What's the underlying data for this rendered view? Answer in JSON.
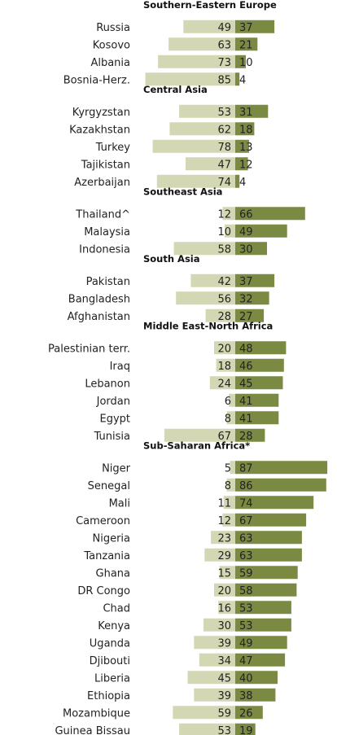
{
  "colors": {
    "left_bar": "#d4d7b4",
    "right_bar": "#7a8a43",
    "text": "#222222"
  },
  "chart_data": {
    "type": "bar",
    "orientation": "diverging-horizontal",
    "title": "",
    "xlabel": "",
    "ylabel": "",
    "legend": "none",
    "grid": false,
    "groups": [
      {
        "region": "Southern-Eastern Europe",
        "countries": [
          {
            "name": "Russia",
            "left": 49,
            "right": 37
          },
          {
            "name": "Kosovo",
            "left": 63,
            "right": 21
          },
          {
            "name": "Albania",
            "left": 73,
            "right": 10
          },
          {
            "name": "Bosnia-Herz.",
            "left": 85,
            "right": 4
          }
        ]
      },
      {
        "region": "Central Asia",
        "countries": [
          {
            "name": "Kyrgyzstan",
            "left": 53,
            "right": 31
          },
          {
            "name": "Kazakhstan",
            "left": 62,
            "right": 18
          },
          {
            "name": "Turkey",
            "left": 78,
            "right": 13
          },
          {
            "name": "Tajikistan",
            "left": 47,
            "right": 12
          },
          {
            "name": "Azerbaijan",
            "left": 74,
            "right": 4
          }
        ]
      },
      {
        "region": "Southeast Asia",
        "countries": [
          {
            "name": "Thailand^",
            "left": 12,
            "right": 66
          },
          {
            "name": "Malaysia",
            "left": 10,
            "right": 49
          },
          {
            "name": "Indonesia",
            "left": 58,
            "right": 30
          }
        ]
      },
      {
        "region": "South Asia",
        "countries": [
          {
            "name": "Pakistan",
            "left": 42,
            "right": 37
          },
          {
            "name": "Bangladesh",
            "left": 56,
            "right": 32
          },
          {
            "name": "Afghanistan",
            "left": 28,
            "right": 27
          }
        ]
      },
      {
        "region": "Middle East-North Africa",
        "countries": [
          {
            "name": "Palestinian terr.",
            "left": 20,
            "right": 48
          },
          {
            "name": "Iraq",
            "left": 18,
            "right": 46
          },
          {
            "name": "Lebanon",
            "left": 24,
            "right": 45
          },
          {
            "name": "Jordan",
            "left": 6,
            "right": 41
          },
          {
            "name": "Egypt",
            "left": 8,
            "right": 41
          },
          {
            "name": "Tunisia",
            "left": 67,
            "right": 28
          }
        ]
      },
      {
        "region": "Sub-Saharan Africa*",
        "countries": [
          {
            "name": "Niger",
            "left": 5,
            "right": 87
          },
          {
            "name": "Senegal",
            "left": 8,
            "right": 86
          },
          {
            "name": "Mali",
            "left": 11,
            "right": 74
          },
          {
            "name": "Cameroon",
            "left": 12,
            "right": 67
          },
          {
            "name": "Nigeria",
            "left": 23,
            "right": 63
          },
          {
            "name": "Tanzania",
            "left": 29,
            "right": 63
          },
          {
            "name": "Ghana",
            "left": 15,
            "right": 59
          },
          {
            "name": "DR Congo",
            "left": 20,
            "right": 58
          },
          {
            "name": "Chad",
            "left": 16,
            "right": 53
          },
          {
            "name": "Kenya",
            "left": 30,
            "right": 53
          },
          {
            "name": "Uganda",
            "left": 39,
            "right": 49
          },
          {
            "name": "Djibouti",
            "left": 34,
            "right": 47
          },
          {
            "name": "Liberia",
            "left": 45,
            "right": 40
          },
          {
            "name": "Ethiopia",
            "left": 39,
            "right": 38
          },
          {
            "name": "Mozambique",
            "left": 59,
            "right": 26
          },
          {
            "name": "Guinea Bissau",
            "left": 53,
            "right": 19
          }
        ]
      }
    ]
  }
}
